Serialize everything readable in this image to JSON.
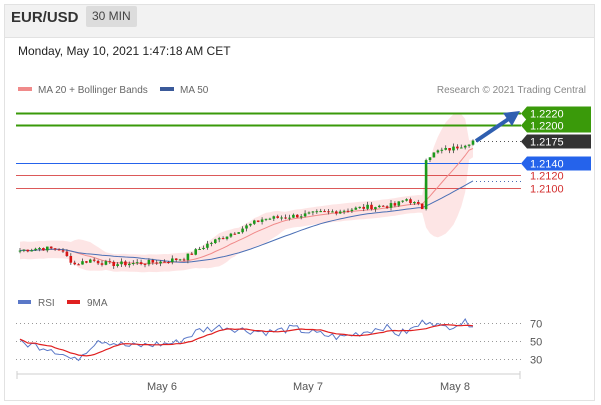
{
  "header": {
    "pair": "EUR/USD",
    "timeframe": "30 MIN"
  },
  "datetime": "Monday, May 10, 2021 1:47:18 AM CET",
  "legend": {
    "ma20": "MA 20 + Bollinger Bands",
    "ma50": "MA 50",
    "credit": "Research © 2021 Trading Central"
  },
  "rsi_legend": {
    "rsi": "RSI",
    "ma": "9MA"
  },
  "colors": {
    "up": "#1a9a1a",
    "down": "#d81414",
    "ma20": "#f08a8a",
    "ma50": "#4a6fb5",
    "target": "#3a9a0a",
    "pivot": "#2563eb",
    "support": "#d32f2f",
    "current": "#333333",
    "rsi": "#5a78c8",
    "rsi_ma": "#e02020"
  },
  "chart_data": [
    {
      "type": "candlestick",
      "title": "EUR/USD",
      "timeframe": "30 MIN",
      "x_labels": [
        "May 6",
        "May 7",
        "May 8"
      ],
      "ylim": [
        1.1945,
        1.224
      ],
      "series": [
        {
          "name": "MA 20 + Bollinger Bands",
          "kind": "band"
        },
        {
          "name": "MA 50",
          "kind": "line"
        }
      ],
      "close_profile": [
        [
          0,
          1.2
        ],
        [
          5,
          1.2004
        ],
        [
          10,
          1.2002
        ],
        [
          14,
          1.1978
        ],
        [
          18,
          1.1985
        ],
        [
          23,
          1.1978
        ],
        [
          30,
          1.198
        ],
        [
          36,
          1.1982
        ],
        [
          42,
          1.1988
        ],
        [
          48,
          1.201
        ],
        [
          55,
          1.203
        ],
        [
          62,
          1.205
        ],
        [
          70,
          1.2055
        ],
        [
          80,
          1.2062
        ],
        [
          90,
          1.207
        ],
        [
          96,
          1.2072
        ],
        [
          99,
          1.2082
        ],
        [
          101,
          1.2075
        ],
        [
          103,
          1.2068
        ],
        [
          104,
          1.2148
        ],
        [
          107,
          1.2158
        ],
        [
          111,
          1.2163
        ],
        [
          113,
          1.2168
        ],
        [
          116,
          1.2175
        ]
      ],
      "levels": [
        {
          "label": "1.2220",
          "value": 1.222,
          "kind": "target"
        },
        {
          "label": "1.2200",
          "value": 1.22,
          "kind": "target"
        },
        {
          "label": "1.2175",
          "value": 1.2175,
          "kind": "current"
        },
        {
          "label": "1.2140",
          "value": 1.214,
          "kind": "pivot"
        },
        {
          "label": "1.2120",
          "value": 1.212,
          "kind": "support"
        },
        {
          "label": "1.2100",
          "value": 1.21,
          "kind": "support"
        }
      ]
    },
    {
      "type": "line",
      "title": "RSI",
      "series": [
        {
          "name": "RSI"
        },
        {
          "name": "9MA"
        }
      ],
      "ylim": [
        20,
        80
      ],
      "yticks": [
        70,
        50,
        30
      ],
      "rsi_profile": [
        [
          0,
          48
        ],
        [
          8,
          42
        ],
        [
          14,
          28
        ],
        [
          20,
          52
        ],
        [
          28,
          44
        ],
        [
          34,
          46
        ],
        [
          40,
          48
        ],
        [
          46,
          62
        ],
        [
          52,
          66
        ],
        [
          58,
          62
        ],
        [
          64,
          60
        ],
        [
          70,
          64
        ],
        [
          76,
          58
        ],
        [
          82,
          54
        ],
        [
          88,
          60
        ],
        [
          93,
          66
        ],
        [
          97,
          58
        ],
        [
          100,
          62
        ],
        [
          103,
          70
        ],
        [
          105,
          74
        ],
        [
          108,
          64
        ],
        [
          112,
          70
        ],
        [
          116,
          70
        ]
      ]
    }
  ]
}
